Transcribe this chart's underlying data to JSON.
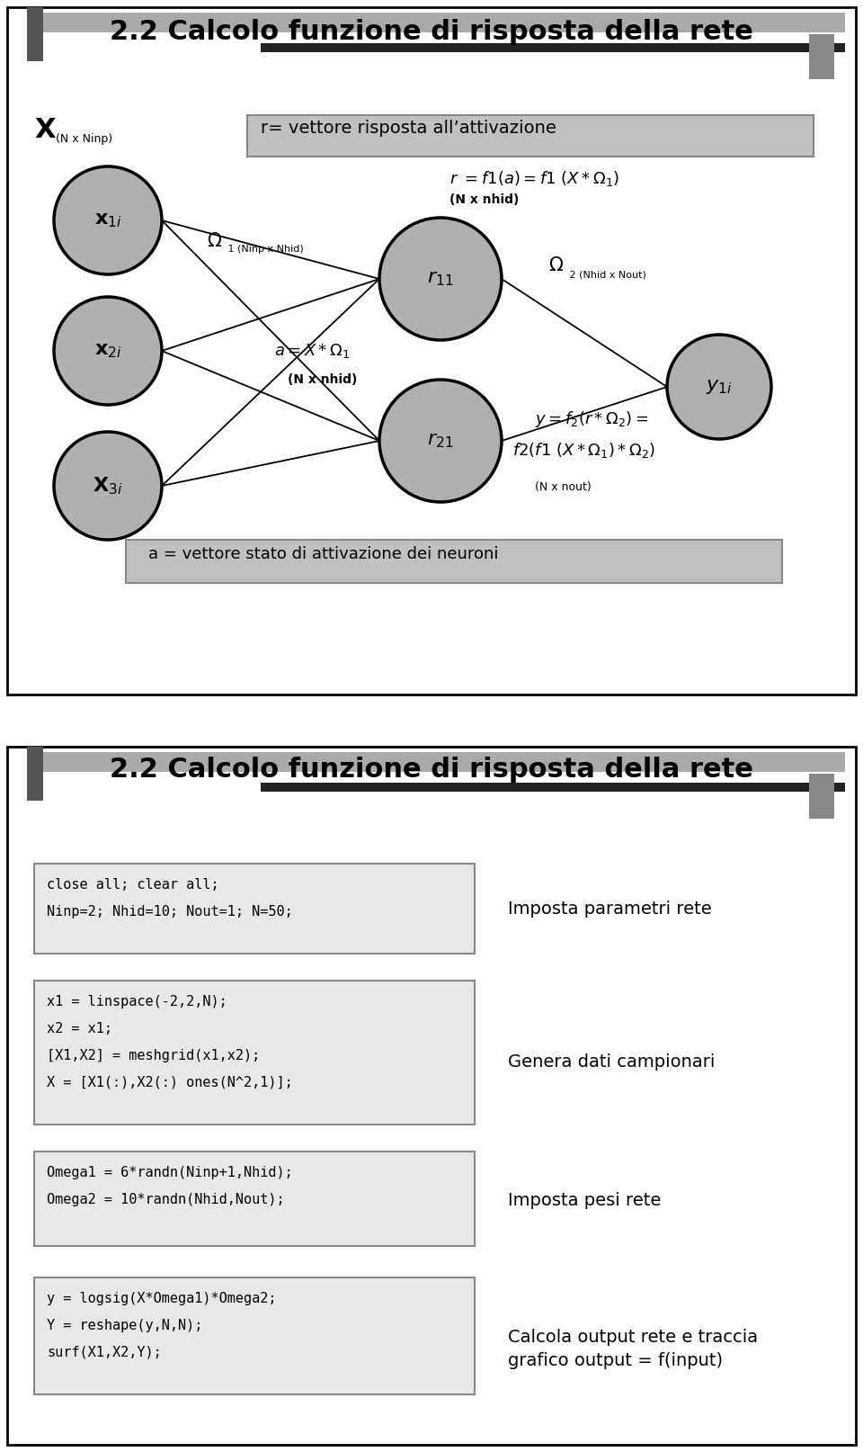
{
  "title": "2.2 Calcolo funzione di risposta della rete",
  "panel1": {
    "title": "2.2 Calcolo funzione di risposta della rete"
  },
  "panel2": {
    "title": "2.2 Calcolo funzione di risposta della rete",
    "boxes": [
      {
        "code": "close all; clear all;\nNinp=2; Nhid=10; Nout=1; N=50;",
        "comment": "Imposta parametri rete"
      },
      {
        "code": "x1 = linspace(-2,2,N);\nx2 = x1;\n[X1,X2] = meshgrid(x1,x2);\nX = [X1(:),X2(:) ones(N^2,1)];",
        "comment": "Genera dati campionari"
      },
      {
        "code": "Omega1 = 6*randn(Ninp+1,Nhid);\nOmega2 = 10*randn(Nhid,Nout);",
        "comment": "Imposta pesi rete"
      },
      {
        "code": "y = logsig(X*Omega1)*Omega2;\nY = reshape(y,N,N);\nsurf(X1,X2,Y);",
        "comment": "Calcola output rete e traccia\ngrafico output = f(input)"
      }
    ]
  }
}
